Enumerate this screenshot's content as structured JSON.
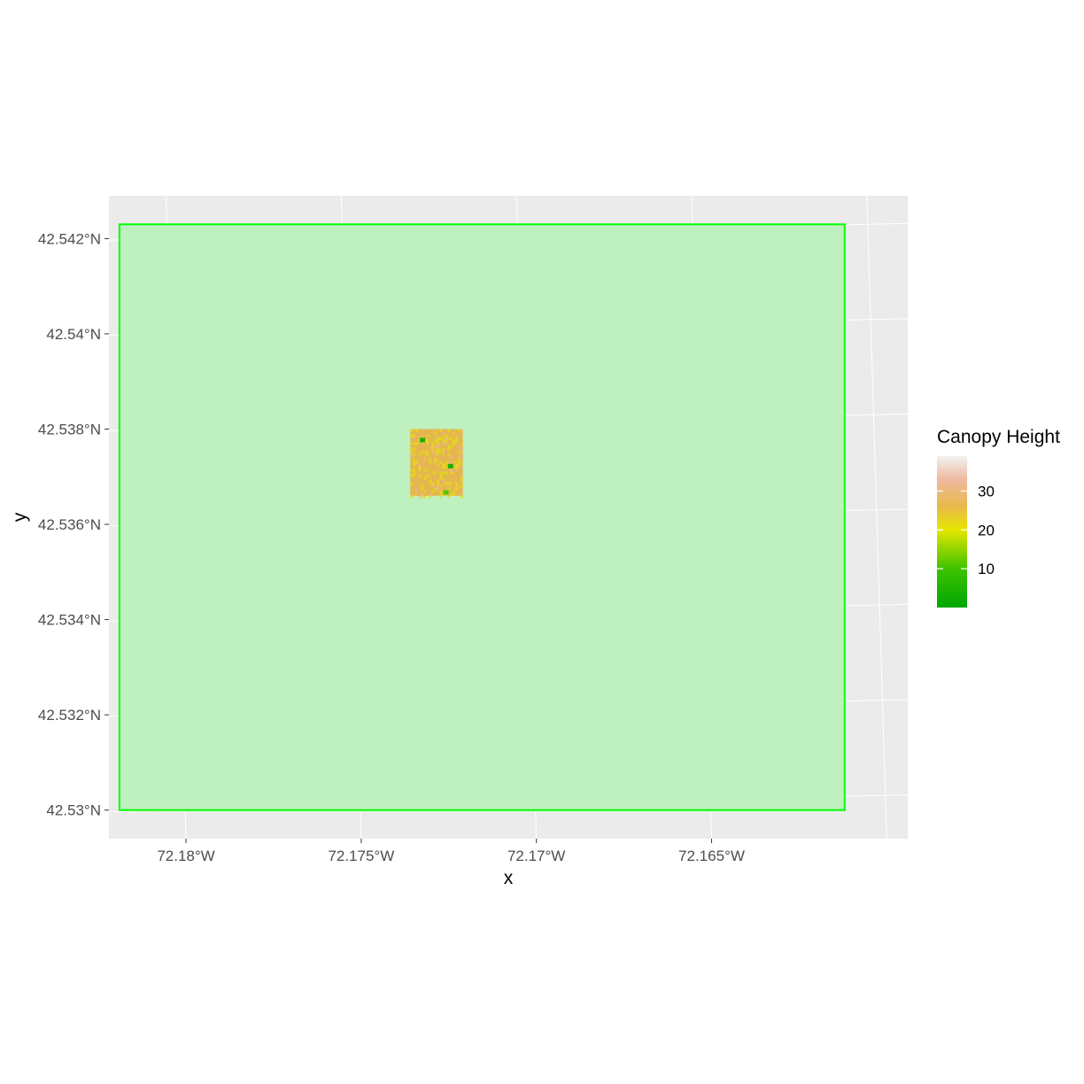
{
  "chart_data": {
    "type": "heatmap",
    "xlabel": "x",
    "ylabel": "y",
    "x_ticks": [
      {
        "value": -72.18,
        "label": "72.18°W"
      },
      {
        "value": -72.175,
        "label": "72.175°W"
      },
      {
        "value": -72.17,
        "label": "72.17°W"
      },
      {
        "value": -72.165,
        "label": "72.165°W"
      }
    ],
    "y_ticks": [
      {
        "value": 42.542,
        "label": "42.542°N"
      },
      {
        "value": 42.54,
        "label": "42.54°N"
      },
      {
        "value": 42.538,
        "label": "42.538°N"
      },
      {
        "value": 42.536,
        "label": "42.536°N"
      },
      {
        "value": 42.534,
        "label": "42.534°N"
      },
      {
        "value": 42.532,
        "label": "42.532°N"
      },
      {
        "value": 42.53,
        "label": "42.53°N"
      }
    ],
    "xlim": [
      -72.1822,
      -72.1594
    ],
    "ylim": [
      42.5294,
      42.5429
    ],
    "grid": true,
    "panel_background": "#ebebeb",
    "grid_color": "#ffffff",
    "extent_polygon": {
      "xmin": -72.1819,
      "xmax": -72.1612,
      "ymin": 42.53,
      "ymax": 42.5423,
      "fill": "#bff0bf",
      "stroke": "#00ff00"
    },
    "raster": {
      "xmin": -72.1736,
      "xmax": -72.1721,
      "ymin": 42.5366,
      "ymax": 42.538,
      "base_color": "#e5b64f",
      "speckle_color": "#e3dc18",
      "hotspots": [
        {
          "x": -72.17325,
          "y": 42.53778,
          "value": 5
        },
        {
          "x": -72.17245,
          "y": 42.53723,
          "value": 3
        },
        {
          "x": -72.17258,
          "y": 42.53668,
          "value": 8
        }
      ]
    },
    "legend": {
      "title": "Canopy Height",
      "position": "right",
      "min": 0,
      "max": 39,
      "breaks": [
        10,
        20,
        30
      ],
      "colors": [
        {
          "value": 0,
          "color": "#00a600"
        },
        {
          "value": 10,
          "color": "#3ec300"
        },
        {
          "value": 20,
          "color": "#e6e600"
        },
        {
          "value": 26,
          "color": "#e8b94a"
        },
        {
          "value": 33,
          "color": "#eeb99f"
        },
        {
          "value": 39,
          "color": "#f2f2f2"
        }
      ]
    }
  }
}
